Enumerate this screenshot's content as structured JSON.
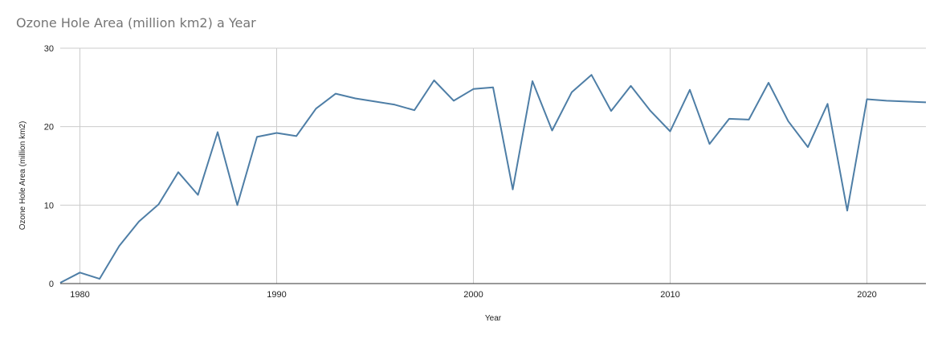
{
  "chart_data": {
    "type": "line",
    "title": "Ozone Hole Area (million km2) a Year",
    "xlabel": "Year",
    "ylabel": "Ozone Hole Area (million km2)",
    "xlim": [
      1979,
      2023
    ],
    "ylim": [
      0,
      30
    ],
    "x_ticks": [
      1980,
      1990,
      2000,
      2010,
      2020
    ],
    "y_ticks": [
      0,
      10,
      20,
      30
    ],
    "grid": true,
    "legend": "none",
    "series": [
      {
        "color": "#4e7ea6",
        "x": [
          1979,
          1980,
          1981,
          1982,
          1983,
          1984,
          1985,
          1986,
          1987,
          1988,
          1989,
          1990,
          1991,
          1992,
          1993,
          1994,
          1995,
          1996,
          1997,
          1998,
          1999,
          2000,
          2001,
          2002,
          2003,
          2004,
          2005,
          2006,
          2007,
          2008,
          2009,
          2010,
          2011,
          2012,
          2013,
          2014,
          2015,
          2016,
          2017,
          2018,
          2019,
          2020,
          2021,
          2022,
          2023
        ],
        "values": [
          0.1,
          1.4,
          0.6,
          4.8,
          7.9,
          10.1,
          14.2,
          11.3,
          19.3,
          10.0,
          18.7,
          19.2,
          18.8,
          22.3,
          24.2,
          23.6,
          23.2,
          22.8,
          22.1,
          25.9,
          23.3,
          24.8,
          25.0,
          12.0,
          25.8,
          19.5,
          24.4,
          26.6,
          22.0,
          25.2,
          22.0,
          19.4,
          24.7,
          17.8,
          21.0,
          20.9,
          25.6,
          20.7,
          17.4,
          22.9,
          9.3,
          23.5,
          23.3,
          23.2,
          23.1
        ]
      }
    ]
  }
}
